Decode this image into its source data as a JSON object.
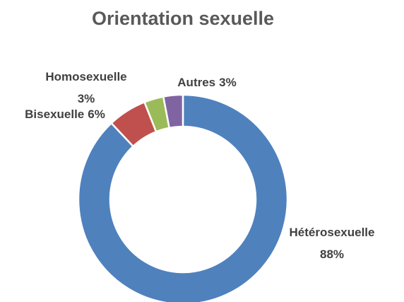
{
  "chart_data": {
    "type": "donut",
    "title": "Orientation sexuelle",
    "categories": [
      "Hétérosexuelle",
      "Bisexuelle",
      "Homosexuelle",
      "Autres"
    ],
    "values": [
      88,
      6,
      3,
      3
    ],
    "value_labels": [
      "88%",
      "6%",
      "3%",
      "3%"
    ],
    "colors": [
      "#4f81bd",
      "#c0504d",
      "#9bbb59",
      "#8064a2"
    ]
  }
}
